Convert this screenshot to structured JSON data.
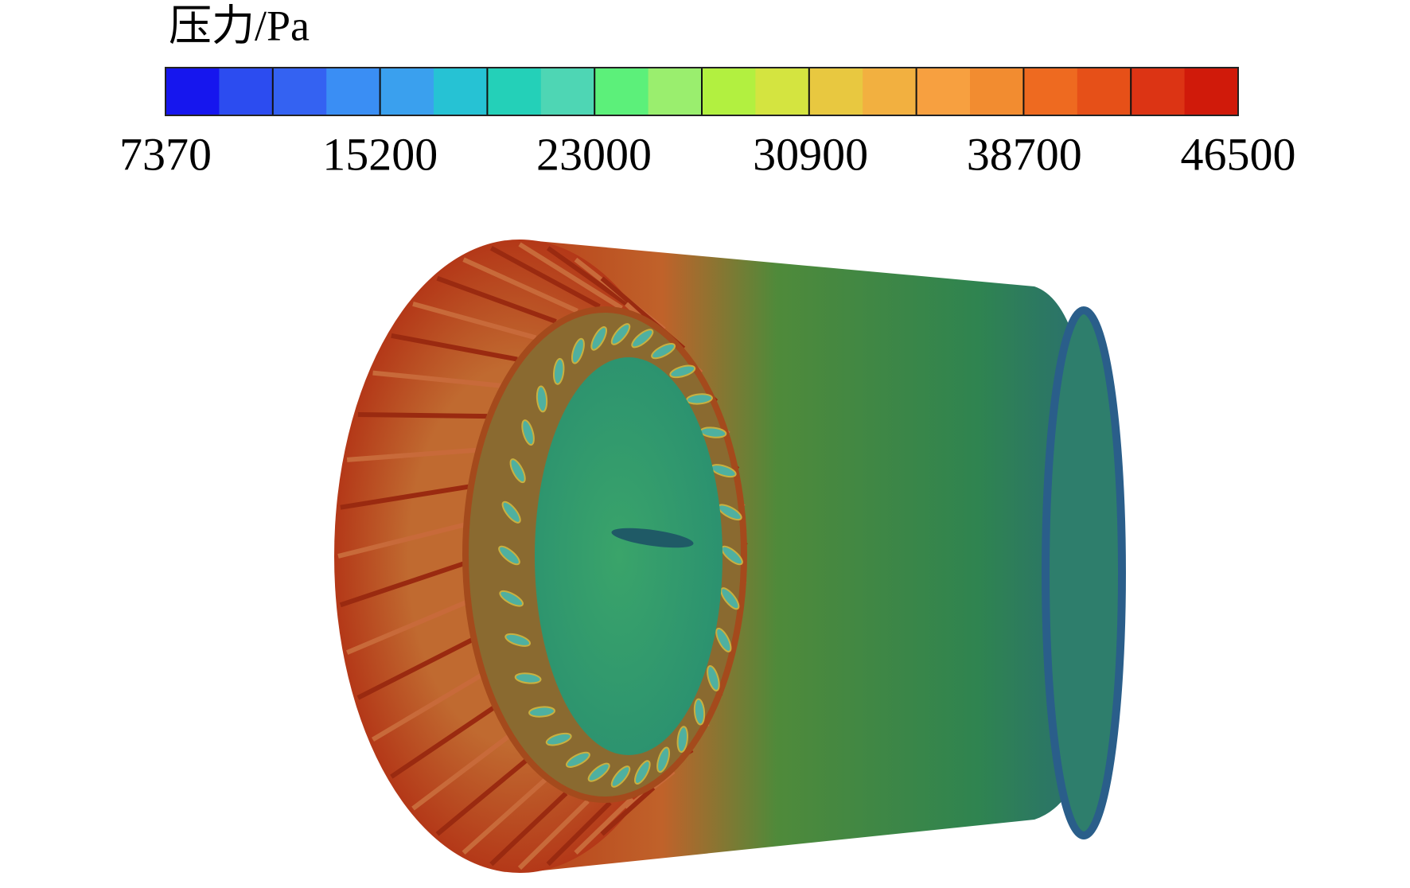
{
  "colorbar": {
    "title": "压力/Pa",
    "lim": [
      7370,
      46500
    ],
    "ticks": [
      7370,
      15200,
      23000,
      30900,
      38700,
      46500
    ],
    "colors": [
      "#1616ee",
      "#2c4cf0",
      "#3462f2",
      "#3a8ef4",
      "#3aa0ee",
      "#26c2d4",
      "#24d0b8",
      "#4ed6b4",
      "#5cf07a",
      "#9aee6e",
      "#b2f040",
      "#d4e440",
      "#e8c840",
      "#f2b040",
      "#f7a040",
      "#f28c30",
      "#ee6a20",
      "#e65018",
      "#dc3414",
      "#d01a0a"
    ],
    "separator_every": 2
  }
}
